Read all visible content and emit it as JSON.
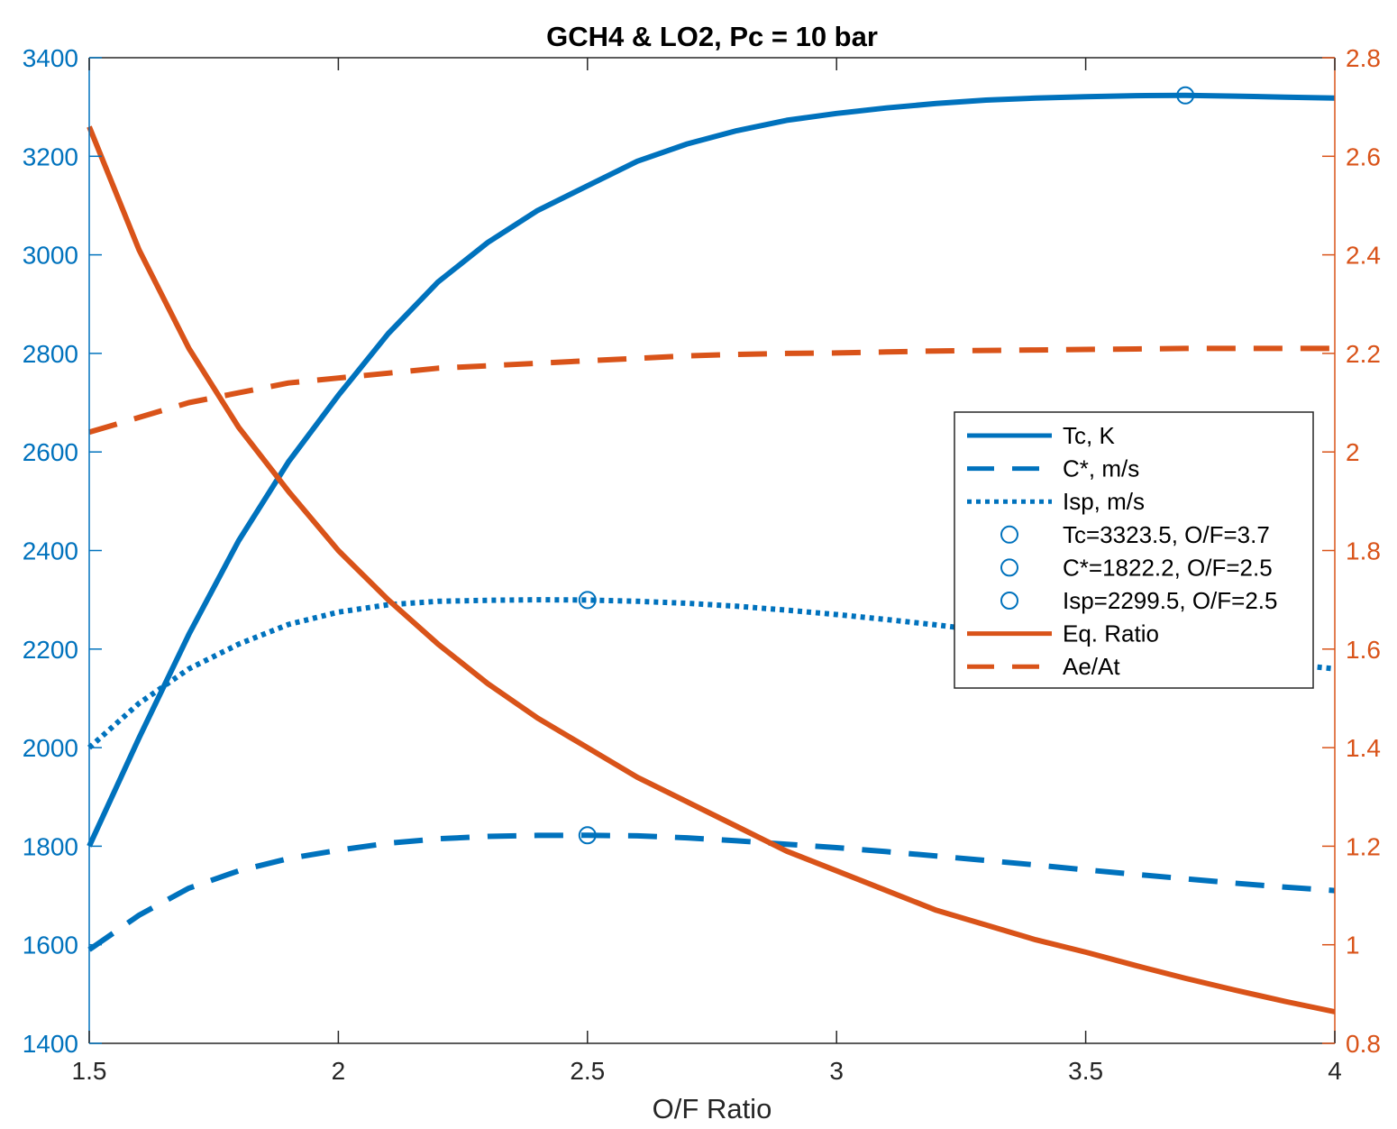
{
  "colors": {
    "left_axis": "#0072BD",
    "right_axis": "#D95319",
    "axes": "#262626"
  },
  "chart_data": {
    "type": "line",
    "title": "GCH4 & LO2, Pc = 10 bar",
    "xlabel": "O/F Ratio",
    "xlim": [
      1.5,
      4
    ],
    "x_ticks": [
      "1.5",
      "2",
      "2.5",
      "3",
      "3.5",
      "4"
    ],
    "ylim_left": [
      1400,
      3400
    ],
    "y_ticks_left": [
      "1400",
      "1600",
      "1800",
      "2000",
      "2200",
      "2400",
      "2600",
      "2800",
      "3000",
      "3200",
      "3400"
    ],
    "ylim_right": [
      0.8,
      2.8
    ],
    "y_ticks_right": [
      "0.8",
      "1",
      "1.2",
      "1.4",
      "1.6",
      "1.8",
      "2",
      "2.2",
      "2.4",
      "2.6",
      "2.8"
    ],
    "grid": false,
    "legend_position": "right",
    "x": [
      1.5,
      1.6,
      1.7,
      1.8,
      1.9,
      2.0,
      2.1,
      2.2,
      2.3,
      2.4,
      2.5,
      2.6,
      2.7,
      2.8,
      2.9,
      3.0,
      3.1,
      3.2,
      3.3,
      3.4,
      3.5,
      3.6,
      3.7,
      3.8,
      3.9,
      4.0
    ],
    "series": [
      {
        "name": "Tc, K",
        "axis": "left",
        "style": "solid",
        "color": "#0072BD",
        "values": [
          1800,
          2020,
          2230,
          2420,
          2580,
          2715,
          2840,
          2945,
          3025,
          3090,
          3140,
          3190,
          3225,
          3252,
          3273,
          3287,
          3298,
          3307,
          3314,
          3318,
          3321,
          3323,
          3323.5,
          3322,
          3320,
          3318
        ]
      },
      {
        "name": "C*, m/s",
        "axis": "left",
        "style": "dashed",
        "color": "#0072BD",
        "values": [
          1590,
          1660,
          1715,
          1750,
          1775,
          1792,
          1806,
          1815,
          1820,
          1822,
          1822.2,
          1821,
          1817,
          1811,
          1804,
          1797,
          1789,
          1780,
          1771,
          1762,
          1752,
          1743,
          1734,
          1725,
          1717,
          1710
        ]
      },
      {
        "name": "Isp, m/s",
        "axis": "left",
        "style": "dotted",
        "color": "#0072BD",
        "values": [
          2000,
          2090,
          2160,
          2210,
          2250,
          2275,
          2290,
          2297,
          2299,
          2300,
          2299.5,
          2297,
          2293,
          2287,
          2279,
          2270,
          2260,
          2249,
          2237,
          2225,
          2213,
          2201,
          2190,
          2180,
          2170,
          2160
        ]
      }
    ],
    "series_right": [
      {
        "name": "Eq. Ratio",
        "axis": "right",
        "style": "solid",
        "color": "#D95319",
        "values": [
          2.66,
          2.41,
          2.21,
          2.05,
          1.92,
          1.8,
          1.7,
          1.61,
          1.53,
          1.46,
          1.4,
          1.34,
          1.29,
          1.24,
          1.19,
          1.15,
          1.11,
          1.07,
          1.04,
          1.01,
          0.985,
          0.958,
          0.932,
          0.908,
          0.885,
          0.864
        ]
      },
      {
        "name": "Ae/At",
        "axis": "right",
        "style": "dashed",
        "color": "#D95319",
        "values": [
          2.04,
          2.07,
          2.1,
          2.12,
          2.14,
          2.15,
          2.16,
          2.17,
          2.175,
          2.18,
          2.185,
          2.19,
          2.195,
          2.198,
          2.2,
          2.201,
          2.203,
          2.205,
          2.206,
          2.207,
          2.208,
          2.209,
          2.21,
          2.21,
          2.21,
          2.21
        ]
      }
    ],
    "markers": [
      {
        "name": "Tc=3323.5, O/F=3.7",
        "x": 3.7,
        "y": 3323.5
      },
      {
        "name": "C*=1822.2, O/F=2.5",
        "x": 2.5,
        "y": 1822.2
      },
      {
        "name": "Isp=2299.5, O/F=2.5",
        "x": 2.5,
        "y": 2299.5
      }
    ],
    "legend": [
      "Tc, K",
      "C*, m/s",
      "Isp, m/s",
      "Tc=3323.5, O/F=3.7",
      "C*=1822.2, O/F=2.5",
      "Isp=2299.5, O/F=2.5",
      "Eq. Ratio",
      "Ae/At"
    ]
  }
}
